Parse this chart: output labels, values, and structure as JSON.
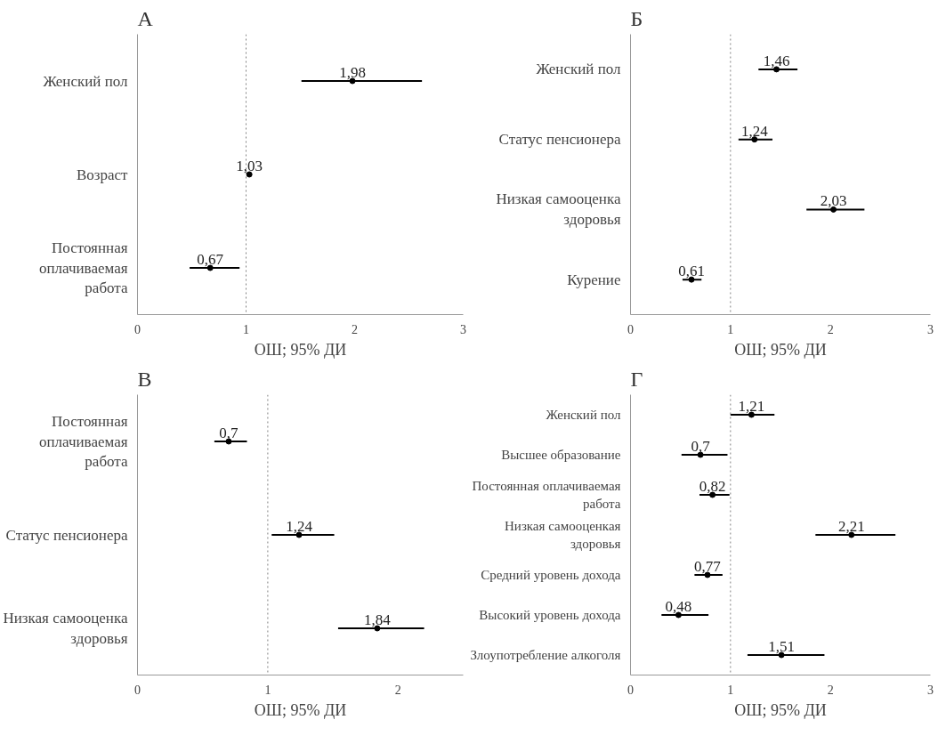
{
  "chart_data": [
    {
      "type": "scatter",
      "title": "А",
      "orientation": "horizontal",
      "xlabel": "ОШ; 95% ДИ",
      "categories": [
        "Женский пол",
        "Возраст",
        "Постоянная\nоплачиваемая\nработа"
      ],
      "series": [
        {
          "color": "#000000",
          "values": [
            1.98,
            1.03,
            0.67
          ],
          "value_labels": [
            "1,98",
            "1,03",
            "0,67"
          ],
          "errors": [
            [
              1.51,
              2.62
            ],
            [
              1.02,
              1.04
            ],
            [
              0.48,
              0.94
            ]
          ]
        }
      ],
      "xlim": [
        0,
        3
      ],
      "xticks": [
        0,
        1,
        2,
        3
      ],
      "marker": "circle",
      "ref_lines": [
        {
          "axis": "x",
          "value": 1,
          "color": "#808080",
          "line_style": "dotted"
        }
      ]
    },
    {
      "type": "scatter",
      "title": "Б",
      "orientation": "horizontal",
      "xlabel": "ОШ; 95% ДИ",
      "categories": [
        "Женский пол",
        "Статус пенсионера",
        "Низкая самооценка\nздоровья",
        "Курение"
      ],
      "series": [
        {
          "color": "#000000",
          "values": [
            1.46,
            1.24,
            2.03,
            0.61
          ],
          "value_labels": [
            "1,46",
            "1,24",
            "2,03",
            "0,61"
          ],
          "errors": [
            [
              1.28,
              1.67
            ],
            [
              1.08,
              1.42
            ],
            [
              1.76,
              2.34
            ],
            [
              0.52,
              0.71
            ]
          ]
        }
      ],
      "xlim": [
        0,
        3
      ],
      "xticks": [
        0,
        1,
        2,
        3
      ],
      "marker": "circle",
      "ref_lines": [
        {
          "axis": "x",
          "value": 1,
          "color": "#808080",
          "line_style": "dotted"
        }
      ]
    },
    {
      "type": "scatter",
      "title": "В",
      "orientation": "horizontal",
      "xlabel": "ОШ; 95% ДИ",
      "categories": [
        "Постоянная\nоплачиваемая\nработа",
        "Статус пенсионера",
        "Низкая самооценка\nздоровья"
      ],
      "series": [
        {
          "color": "#000000",
          "values": [
            0.7,
            1.24,
            1.84
          ],
          "value_labels": [
            "0,7",
            "1,24",
            "1,84"
          ],
          "errors": [
            [
              0.59,
              0.84
            ],
            [
              1.03,
              1.51
            ],
            [
              1.54,
              2.2
            ]
          ]
        }
      ],
      "xlim": [
        0,
        2.5
      ],
      "xticks": [
        0,
        1,
        2
      ],
      "marker": "circle",
      "ref_lines": [
        {
          "axis": "x",
          "value": 1,
          "color": "#808080",
          "line_style": "dotted"
        }
      ]
    },
    {
      "type": "scatter",
      "title": "Г",
      "orientation": "horizontal",
      "xlabel": "ОШ; 95% ДИ",
      "categories": [
        "Женский пол",
        "Высшее образование",
        "Постоянная оплачиваемая\nработа",
        "Низкая самооценкая\nздоровья",
        "Средний уровень дохода",
        "Высокий уровень дохода",
        "Злоупотребление алкоголя"
      ],
      "series": [
        {
          "color": "#000000",
          "values": [
            1.21,
            0.7,
            0.82,
            2.21,
            0.77,
            0.48,
            1.51
          ],
          "value_labels": [
            "1,21",
            "0,7",
            "0,82",
            "2,21",
            "0,77",
            "0,48",
            "1,51"
          ],
          "errors": [
            [
              1.0,
              1.44
            ],
            [
              0.51,
              0.97
            ],
            [
              0.69,
              0.99
            ],
            [
              1.85,
              2.65
            ],
            [
              0.64,
              0.92
            ],
            [
              0.31,
              0.78
            ],
            [
              1.17,
              1.94
            ]
          ]
        }
      ],
      "xlim": [
        0,
        3
      ],
      "xticks": [
        0,
        1,
        2,
        3
      ],
      "marker": "circle",
      "ref_lines": [
        {
          "axis": "x",
          "value": 1,
          "color": "#808080",
          "line_style": "dotted"
        }
      ]
    }
  ]
}
